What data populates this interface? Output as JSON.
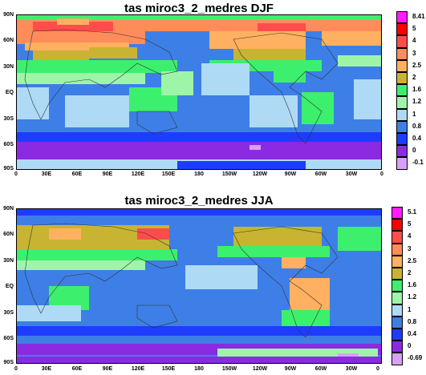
{
  "maps": [
    {
      "title": "tas miroc3_2_medres DJF",
      "legend": {
        "labels": [
          "8.41",
          "5",
          "4",
          "3",
          "2.5",
          "2",
          "1.6",
          "1.2",
          "1",
          "0.8",
          "0.4",
          "0",
          "-0.1"
        ],
        "colors": [
          "#ff1cff",
          "#ff0000",
          "#ff4d4d",
          "#ff8c5a",
          "#ffb060",
          "#c8b432",
          "#3cf06e",
          "#9ef5a8",
          "#aedaf5",
          "#3d7fe6",
          "#1e3cff",
          "#8a2be2",
          "#d8a0f8"
        ]
      }
    },
    {
      "title": "tas miroc3_2_medres JJA",
      "legend": {
        "labels": [
          "5.1",
          "5",
          "4",
          "3",
          "2.5",
          "2",
          "1.6",
          "1.2",
          "1",
          "0.8",
          "0.4",
          "0",
          "-0.69"
        ],
        "colors": [
          "#ff1cff",
          "#ff0000",
          "#ff4d4d",
          "#ff8c5a",
          "#ffb060",
          "#c8b432",
          "#3cf06e",
          "#9ef5a8",
          "#aedaf5",
          "#3d7fe6",
          "#1e3cff",
          "#8a2be2",
          "#d8a0f8"
        ]
      }
    }
  ],
  "axes": {
    "lat_labels": [
      "90N",
      "60N",
      "30N",
      "EQ",
      "30S",
      "60S",
      "90S"
    ],
    "lon_labels": [
      "0",
      "30E",
      "60E",
      "90E",
      "120E",
      "150E",
      "180",
      "150W",
      "120W",
      "90W",
      "60W",
      "30W",
      "0"
    ]
  }
}
